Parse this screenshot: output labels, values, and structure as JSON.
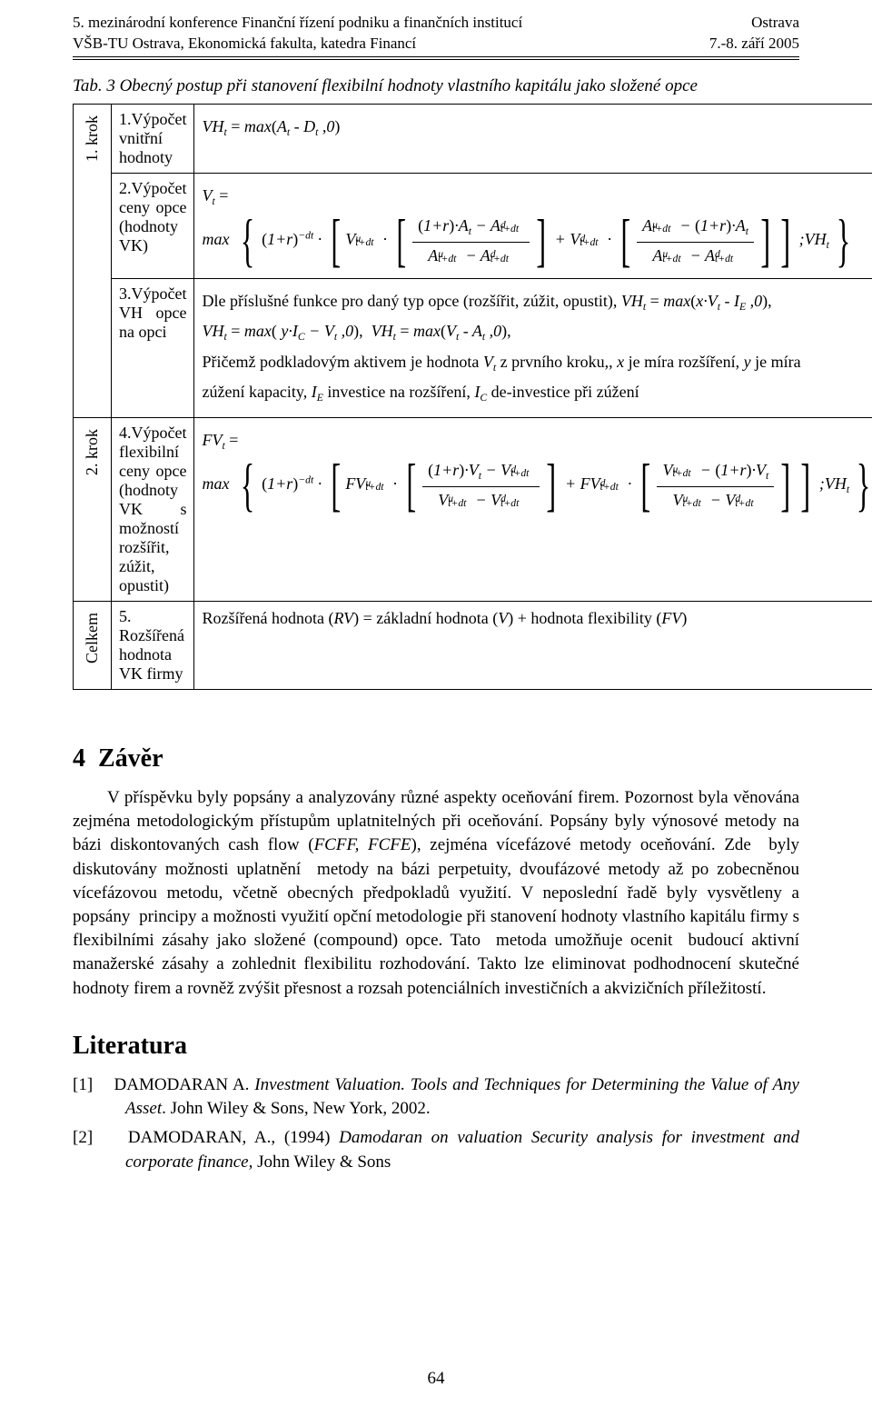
{
  "header": {
    "left1": "5. mezinárodní konference Finanční řízení podniku a finančních institucí",
    "left2": "VŠB-TU Ostrava, Ekonomická fakulta, katedra Financí",
    "right1": "Ostrava",
    "right2": "7.-8. září 2005"
  },
  "caption": "Tab. 3 Obecný postup při stanovení flexibilní hodnoty vlastního kapitálu jako složené opce",
  "rows": {
    "krok1": "1. krok",
    "krok2": "2. krok",
    "celkem": "Celkem",
    "step1": "1.Výpočet vnitřní hodnoty",
    "step2": "2.Výpočet ceny opce (hodnoty VK)",
    "step3": "3.Výpočet VH opce na opci",
    "step4": "4.Výpočet flexibilní ceny opce (hodnoty VK s možností rozšířit, zúžit, opustit)",
    "step5": "5. Rozšířená hodnota VK firmy"
  },
  "cell3": {
    "l1a": "Dle příslušné funkce pro daný typ opce (rozšířit, zúžit, opustit), ",
    "l3": "Přičemž podkladovým aktivem je hodnota ",
    "l3b": " z prvního kroku,, ",
    "l3c": " je míra rozšíření, ",
    "l3d": " je míra",
    "l4a": "zúžení kapacity, ",
    "l4b": " investice na rozšíření, ",
    "l4c": " de-investice při zúžení"
  },
  "cell5": "Rozšířená hodnota (RV) = základní hodnota (V) + hodnota flexibility (FV)",
  "zaver": {
    "heading": "4  Závěr",
    "body": "V příspěvku byly popsány a analyzovány různé aspekty oceňování firem. Pozornost byla věnována zejména metodologickým přístupům uplatnitelných při oceňování. Popsány byly výnosové metody na bázi diskontovaných cash flow (FCFF, FCFE), zejména vícefázové metody oceňování. Zde  byly diskutovány možnosti uplatnění  metody na bázi perpetuity, dvoufázové metody až po zobecněnou vícefázovou metodu, včetně obecných předpokladů využití. V neposlední řadě byly vysvětleny a popsány  principy a možnosti využití opční metodologie při stanovení hodnoty vlastního kapitálu firmy s flexibilními zásahy jako složené (compound) opce. Tato  metoda umožňuje ocenit  budoucí aktivní manažerské zásahy a zohlednit flexibilitu rozhodování. Takto lze eliminovat podhodnocení skutečné hodnoty firem a rovněž zvýšit přesnost a rozsah potenciálních investičních a akvizičních příležitostí."
  },
  "lit": {
    "heading": "Literatura",
    "r1_num": "[1]",
    "r1_auth": "DAMODARAN A. ",
    "r1_title": "Investment Valuation. Tools and Techniques for Determining the Value of Any Asset",
    "r1_tail": ". John Wiley & Sons, New York, 2002.",
    "r2_num": "[2]",
    "r2_auth": "DAMODARAN, A., (1994) ",
    "r2_title": "Damodaran on valuation Security analysis for investment and corporate finance",
    "r2_tail": ", John Wiley & Sons"
  },
  "pagenum": "64"
}
